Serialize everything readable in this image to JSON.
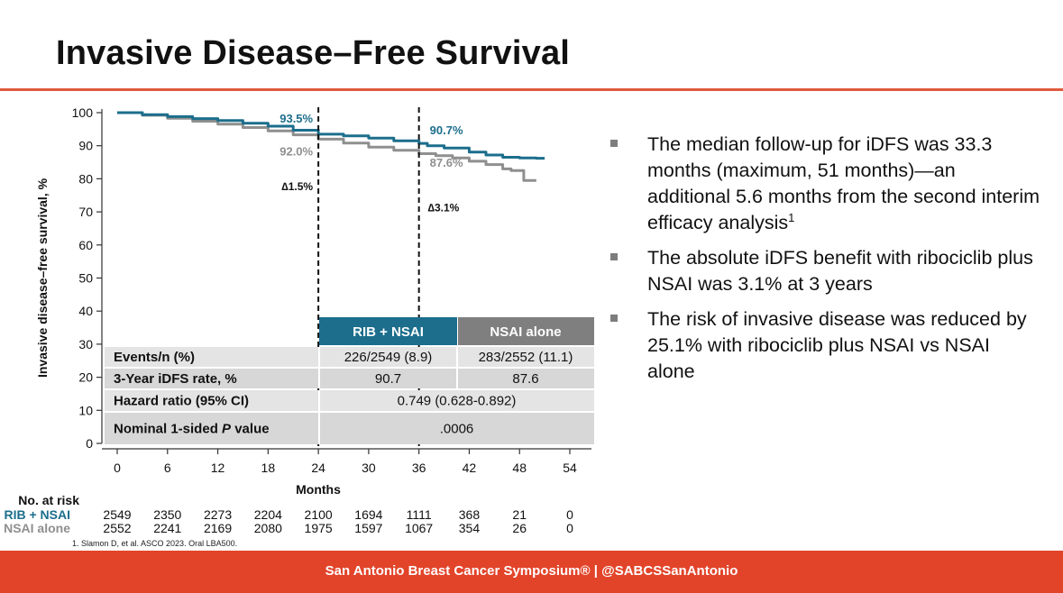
{
  "slide": {
    "title": "Invasive Disease–Free Survival",
    "footnote": "1. Slamon D, et al. ASCO 2023. Oral LBA500.",
    "footer": "San Antonio Breast Cancer Symposium®  |  @SABCSSanAntonio",
    "bullets": [
      {
        "text": "The median follow-up for iDFS was 33.3 months (maximum, 51 months)—an additional 5.6 months from the second interim efficacy analysis",
        "sup": "1"
      },
      {
        "text": "The absolute iDFS benefit with ribociclib plus NSAI was 3.1% at 3 years",
        "sup": ""
      },
      {
        "text": "The risk of invasive disease was reduced by 25.1% with ribociclib plus NSAI vs NSAI alone",
        "sup": ""
      }
    ]
  },
  "colors": {
    "rib": "#1c6e8c",
    "nsai": "#8f8f8f",
    "accent": "#e2442a",
    "header_rib": "#1c6e8c",
    "header_nsai": "#7f7f7f"
  },
  "chart_data": {
    "type": "line",
    "xlabel": "Months",
    "ylabel": "Invasive disease–free survival, %",
    "xlim": [
      0,
      54
    ],
    "ylim": [
      0,
      100
    ],
    "xticks": [
      0,
      6,
      12,
      18,
      24,
      30,
      36,
      42,
      48,
      54
    ],
    "yticks": [
      0,
      10,
      20,
      30,
      40,
      50,
      60,
      70,
      80,
      90,
      100
    ],
    "series": [
      {
        "name": "RIB + NSAI",
        "color": "#1c6e8c",
        "x": [
          0,
          3,
          6,
          9,
          12,
          15,
          18,
          21,
          24,
          27,
          30,
          33,
          36,
          37,
          39,
          42,
          44,
          46,
          48,
          50,
          51
        ],
        "y": [
          100,
          99.4,
          98.8,
          98.2,
          97.6,
          96.8,
          95.9,
          94.7,
          93.5,
          93.0,
          92.3,
          91.5,
          90.7,
          90.0,
          89.3,
          88.1,
          87.2,
          86.5,
          86.3,
          86.2,
          86.2
        ]
      },
      {
        "name": "NSAI alone",
        "color": "#8f8f8f",
        "x": [
          0,
          3,
          6,
          9,
          12,
          15,
          18,
          21,
          24,
          27,
          30,
          33,
          36,
          38,
          40,
          42,
          44,
          46,
          47,
          48,
          48.5,
          50
        ],
        "y": [
          100,
          99.2,
          98.3,
          97.4,
          96.5,
          95.5,
          94.5,
          93.3,
          92.0,
          90.8,
          89.6,
          88.6,
          87.6,
          87.0,
          86.3,
          85.3,
          84.3,
          83.0,
          82.5,
          82.5,
          79.5,
          79.5
        ]
      }
    ],
    "annotations": [
      {
        "text": "93.5%",
        "x": 24,
        "y": 93.5,
        "series": "RIB + NSAI"
      },
      {
        "text": "92.0%",
        "x": 24,
        "y": 92.0,
        "series": "NSAI alone"
      },
      {
        "text": "90.7%",
        "x": 36,
        "y": 90.7,
        "series": "RIB + NSAI"
      },
      {
        "text": "87.6%",
        "x": 36,
        "y": 87.6,
        "series": "NSAI alone"
      },
      {
        "text": "∆1.5%",
        "x": 24
      },
      {
        "text": "∆3.1%",
        "x": 36
      }
    ],
    "reference_lines_x": [
      24,
      36
    ],
    "table": {
      "headers": [
        "RIB + NSAI",
        "NSAI alone"
      ],
      "rows": [
        {
          "label": "Events/n (%)",
          "values": [
            "226/2549 (8.9)",
            "283/2552 (11.1)"
          ]
        },
        {
          "label": "3-Year iDFS rate, %",
          "values": [
            "90.7",
            "87.6"
          ]
        },
        {
          "label": "Hazard ratio (95% CI)",
          "merged": "0.749 (0.628-0.892)"
        },
        {
          "label_pre": "Nominal 1-sided ",
          "label_ital": "P",
          "label_post": " value",
          "merged": ".0006"
        }
      ]
    },
    "risk_table": {
      "title": "No. at risk",
      "rows": [
        {
          "label": "RIB + NSAI",
          "color": "#1c6e8c",
          "values": [
            2549,
            2350,
            2273,
            2204,
            2100,
            1694,
            1111,
            368,
            21,
            0
          ]
        },
        {
          "label": "NSAI alone",
          "color": "#8f8f8f",
          "values": [
            2552,
            2241,
            2169,
            2080,
            1975,
            1597,
            1067,
            354,
            26,
            0
          ]
        }
      ]
    }
  }
}
